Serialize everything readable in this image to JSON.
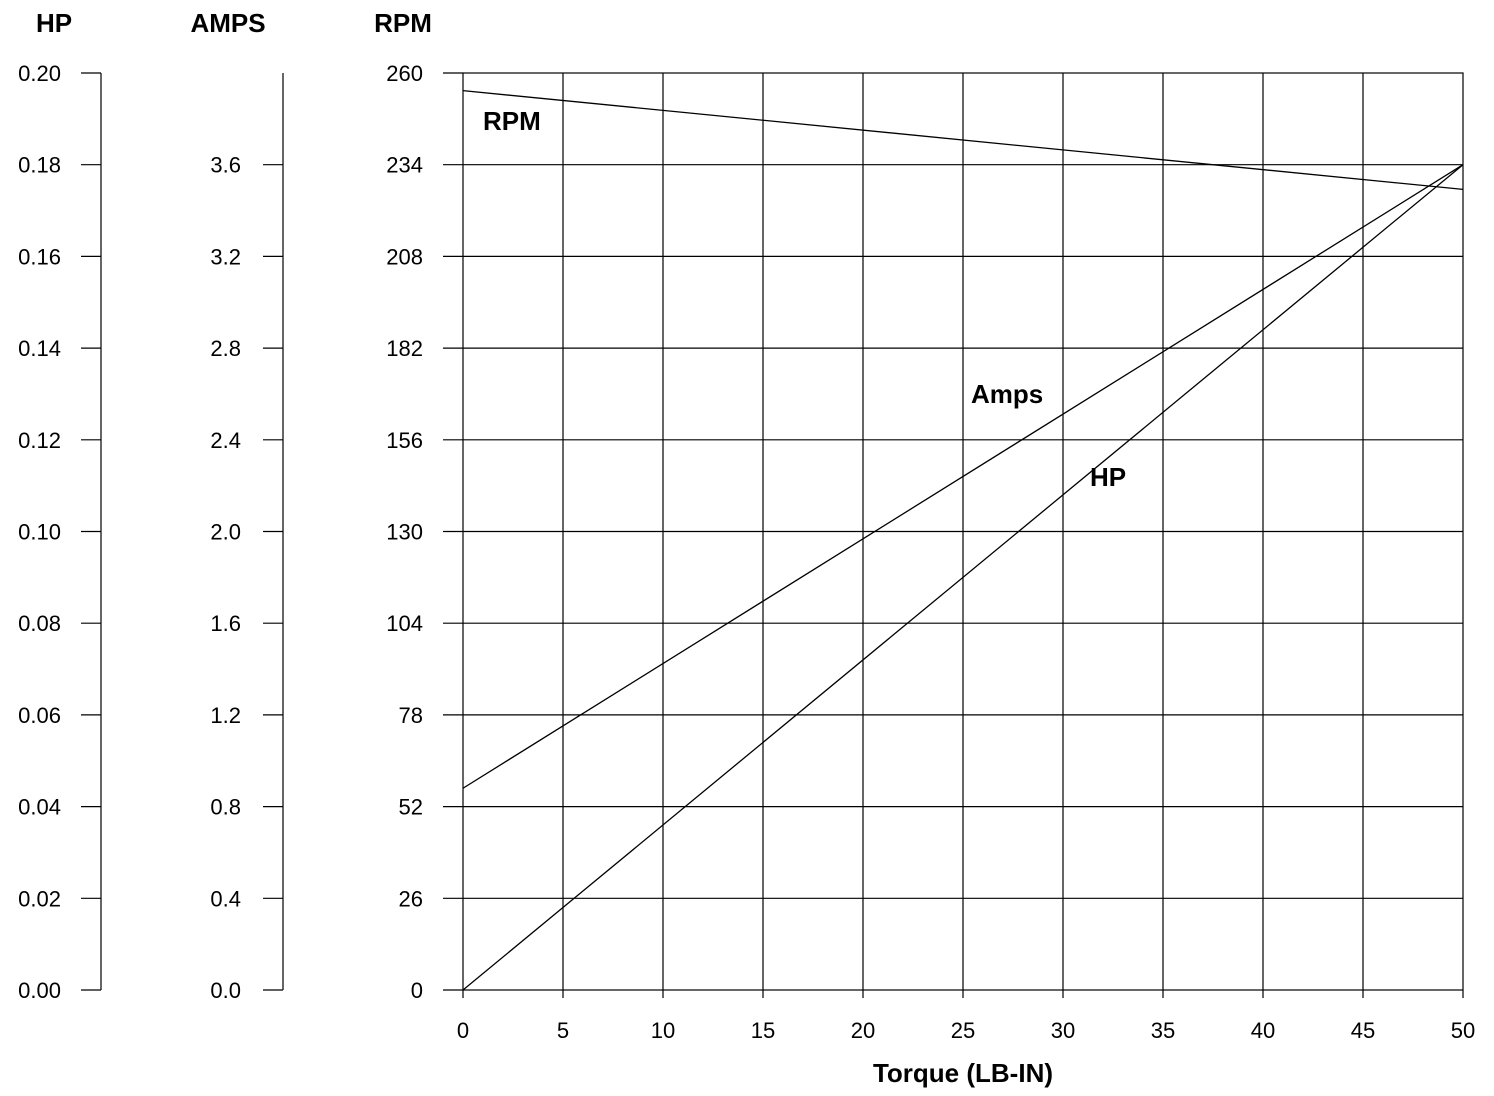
{
  "chart_data": {
    "type": "line",
    "title": "",
    "xlabel": "Torque (LB-IN)",
    "x_ticks": [
      "0",
      "5",
      "10",
      "15",
      "20",
      "25",
      "30",
      "35",
      "40",
      "45",
      "50"
    ],
    "xlim": [
      0,
      50
    ],
    "grid": true,
    "axes": [
      {
        "id": "hp",
        "title": "HP",
        "ylim": [
          0,
          0.2
        ],
        "ticks": [
          "0.00",
          "0.02",
          "0.04",
          "0.06",
          "0.08",
          "0.10",
          "0.12",
          "0.14",
          "0.16",
          "0.18",
          "0.20"
        ]
      },
      {
        "id": "amps",
        "title": "AMPS",
        "ylim": [
          0,
          4.0
        ],
        "ticks": [
          "0.0",
          "0.4",
          "0.8",
          "1.2",
          "1.6",
          "2.0",
          "2.4",
          "2.8",
          "3.2",
          "3.6",
          ""
        ]
      },
      {
        "id": "rpm",
        "title": "RPM",
        "ylim": [
          0,
          260
        ],
        "ticks": [
          "0",
          "26",
          "52",
          "78",
          "104",
          "130",
          "156",
          "182",
          "208",
          "234",
          "260"
        ]
      }
    ],
    "series": [
      {
        "name": "RPM",
        "axis": "rpm",
        "x": [
          0,
          50
        ],
        "y": [
          255,
          227
        ]
      },
      {
        "name": "Amps",
        "axis": "amps",
        "x": [
          0,
          50
        ],
        "y": [
          0.88,
          3.6
        ]
      },
      {
        "name": "HP",
        "axis": "hp",
        "x": [
          0,
          50
        ],
        "y": [
          0.0,
          0.18
        ]
      }
    ]
  },
  "colors": {
    "line": "#000000",
    "grid": "#000000",
    "background": "#ffffff"
  }
}
